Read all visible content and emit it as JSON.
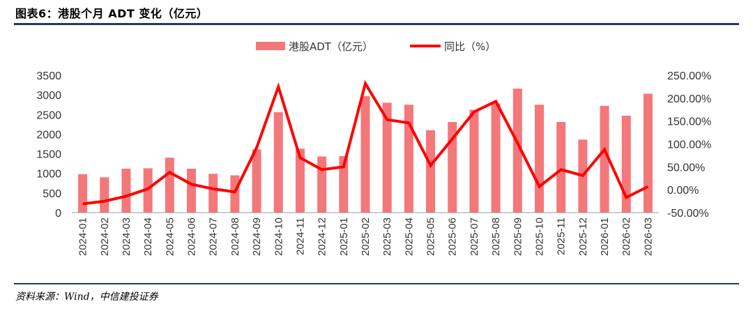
{
  "title": "图表6：港股个月 ADT 变化（亿元）",
  "source": "资料来源：Wind，中信建投证券",
  "colors": {
    "bar": "#f4777a",
    "line": "#ff0000",
    "rule": "#1f3864"
  },
  "chart_data": {
    "type": "bar+line",
    "categories": [
      "2024-01",
      "2024-02",
      "2024-03",
      "2024-04",
      "2024-05",
      "2024-06",
      "2024-07",
      "2024-08",
      "2024-09",
      "2024-10",
      "2024-11",
      "2024-12",
      "2025-01",
      "2025-02",
      "2025-03",
      "2025-04",
      "2025-05",
      "2025-06",
      "2025-07",
      "2025-08",
      "2025-09",
      "2025-10",
      "2025-11",
      "2025-12",
      "2026-01",
      "2026-02",
      "2026-03"
    ],
    "series": [
      {
        "name": "港股ADT（亿元）",
        "type": "bar",
        "axis": "left",
        "values": [
          980,
          900,
          1120,
          1130,
          1400,
          1120,
          990,
          950,
          1610,
          2560,
          1630,
          1430,
          1440,
          2970,
          2800,
          2750,
          2100,
          2310,
          2620,
          2780,
          3160,
          2750,
          2310,
          1860,
          2720,
          2470,
          3030
        ]
      },
      {
        "name": "同比（%）",
        "type": "line",
        "axis": "right",
        "values": [
          -31,
          -25,
          -14,
          2,
          38,
          12,
          2,
          -5,
          92,
          225,
          70,
          44,
          50,
          232,
          153,
          146,
          53,
          111,
          170,
          193,
          102,
          7,
          44,
          31,
          88,
          -17,
          7
        ]
      }
    ],
    "y_left": {
      "lim": [
        0,
        3500
      ],
      "ticks": [
        "0",
        "500",
        "1000",
        "1500",
        "2000",
        "2500",
        "3000",
        "3500"
      ]
    },
    "y_right": {
      "lim": [
        -50,
        250
      ],
      "ticks": [
        "-50.00%",
        "0.00%",
        "50.00%",
        "100.00%",
        "150.00%",
        "200.00%",
        "250.00%"
      ]
    },
    "grid": false,
    "legend": "top-center"
  }
}
